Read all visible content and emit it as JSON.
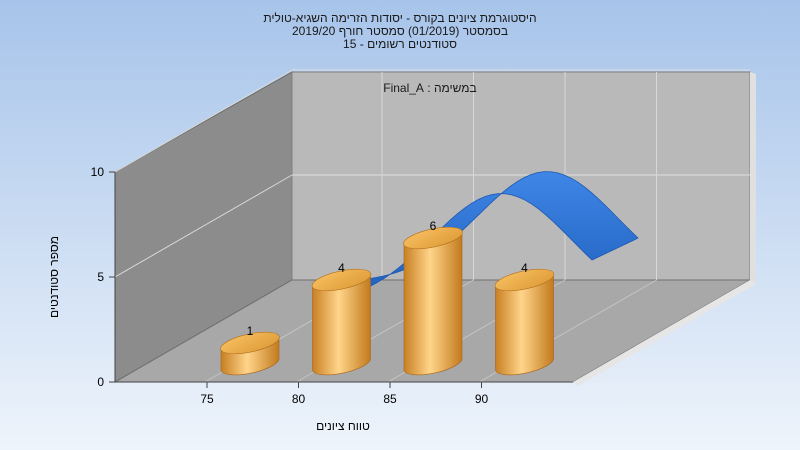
{
  "chart_data": {
    "type": "bar",
    "title_lines": [
      "היסטוגרמת ציונים בקורס - יסודות הזרימה השגיא-טולית",
      "בסמסטר (01/2019) סמסטר חורף 2019/20",
      "סטודנטים רשומים - 15"
    ],
    "subtitle": "במשימה : Final_A",
    "xlabel": "טווח ציונים",
    "ylabel": "מספר סטודנטים",
    "x_ticks": [
      "75",
      "80",
      "85",
      "90"
    ],
    "y_ticks": [
      "0",
      "5",
      "10"
    ],
    "ylim": [
      0,
      10
    ],
    "categories": [
      "75-80",
      "80-85",
      "85-90",
      "90-95"
    ],
    "values": [
      1,
      4,
      6,
      4
    ],
    "curve": "normal-distribution",
    "colors": {
      "bar": "#f0b450",
      "curve": "#2e6fcf",
      "back_wall": "#b9b9b9",
      "side_wall": "#8c8c8c",
      "floor": "#a8a8a8",
      "background_top": "#aac6ea",
      "background_bottom": "#e8f0fa"
    }
  }
}
